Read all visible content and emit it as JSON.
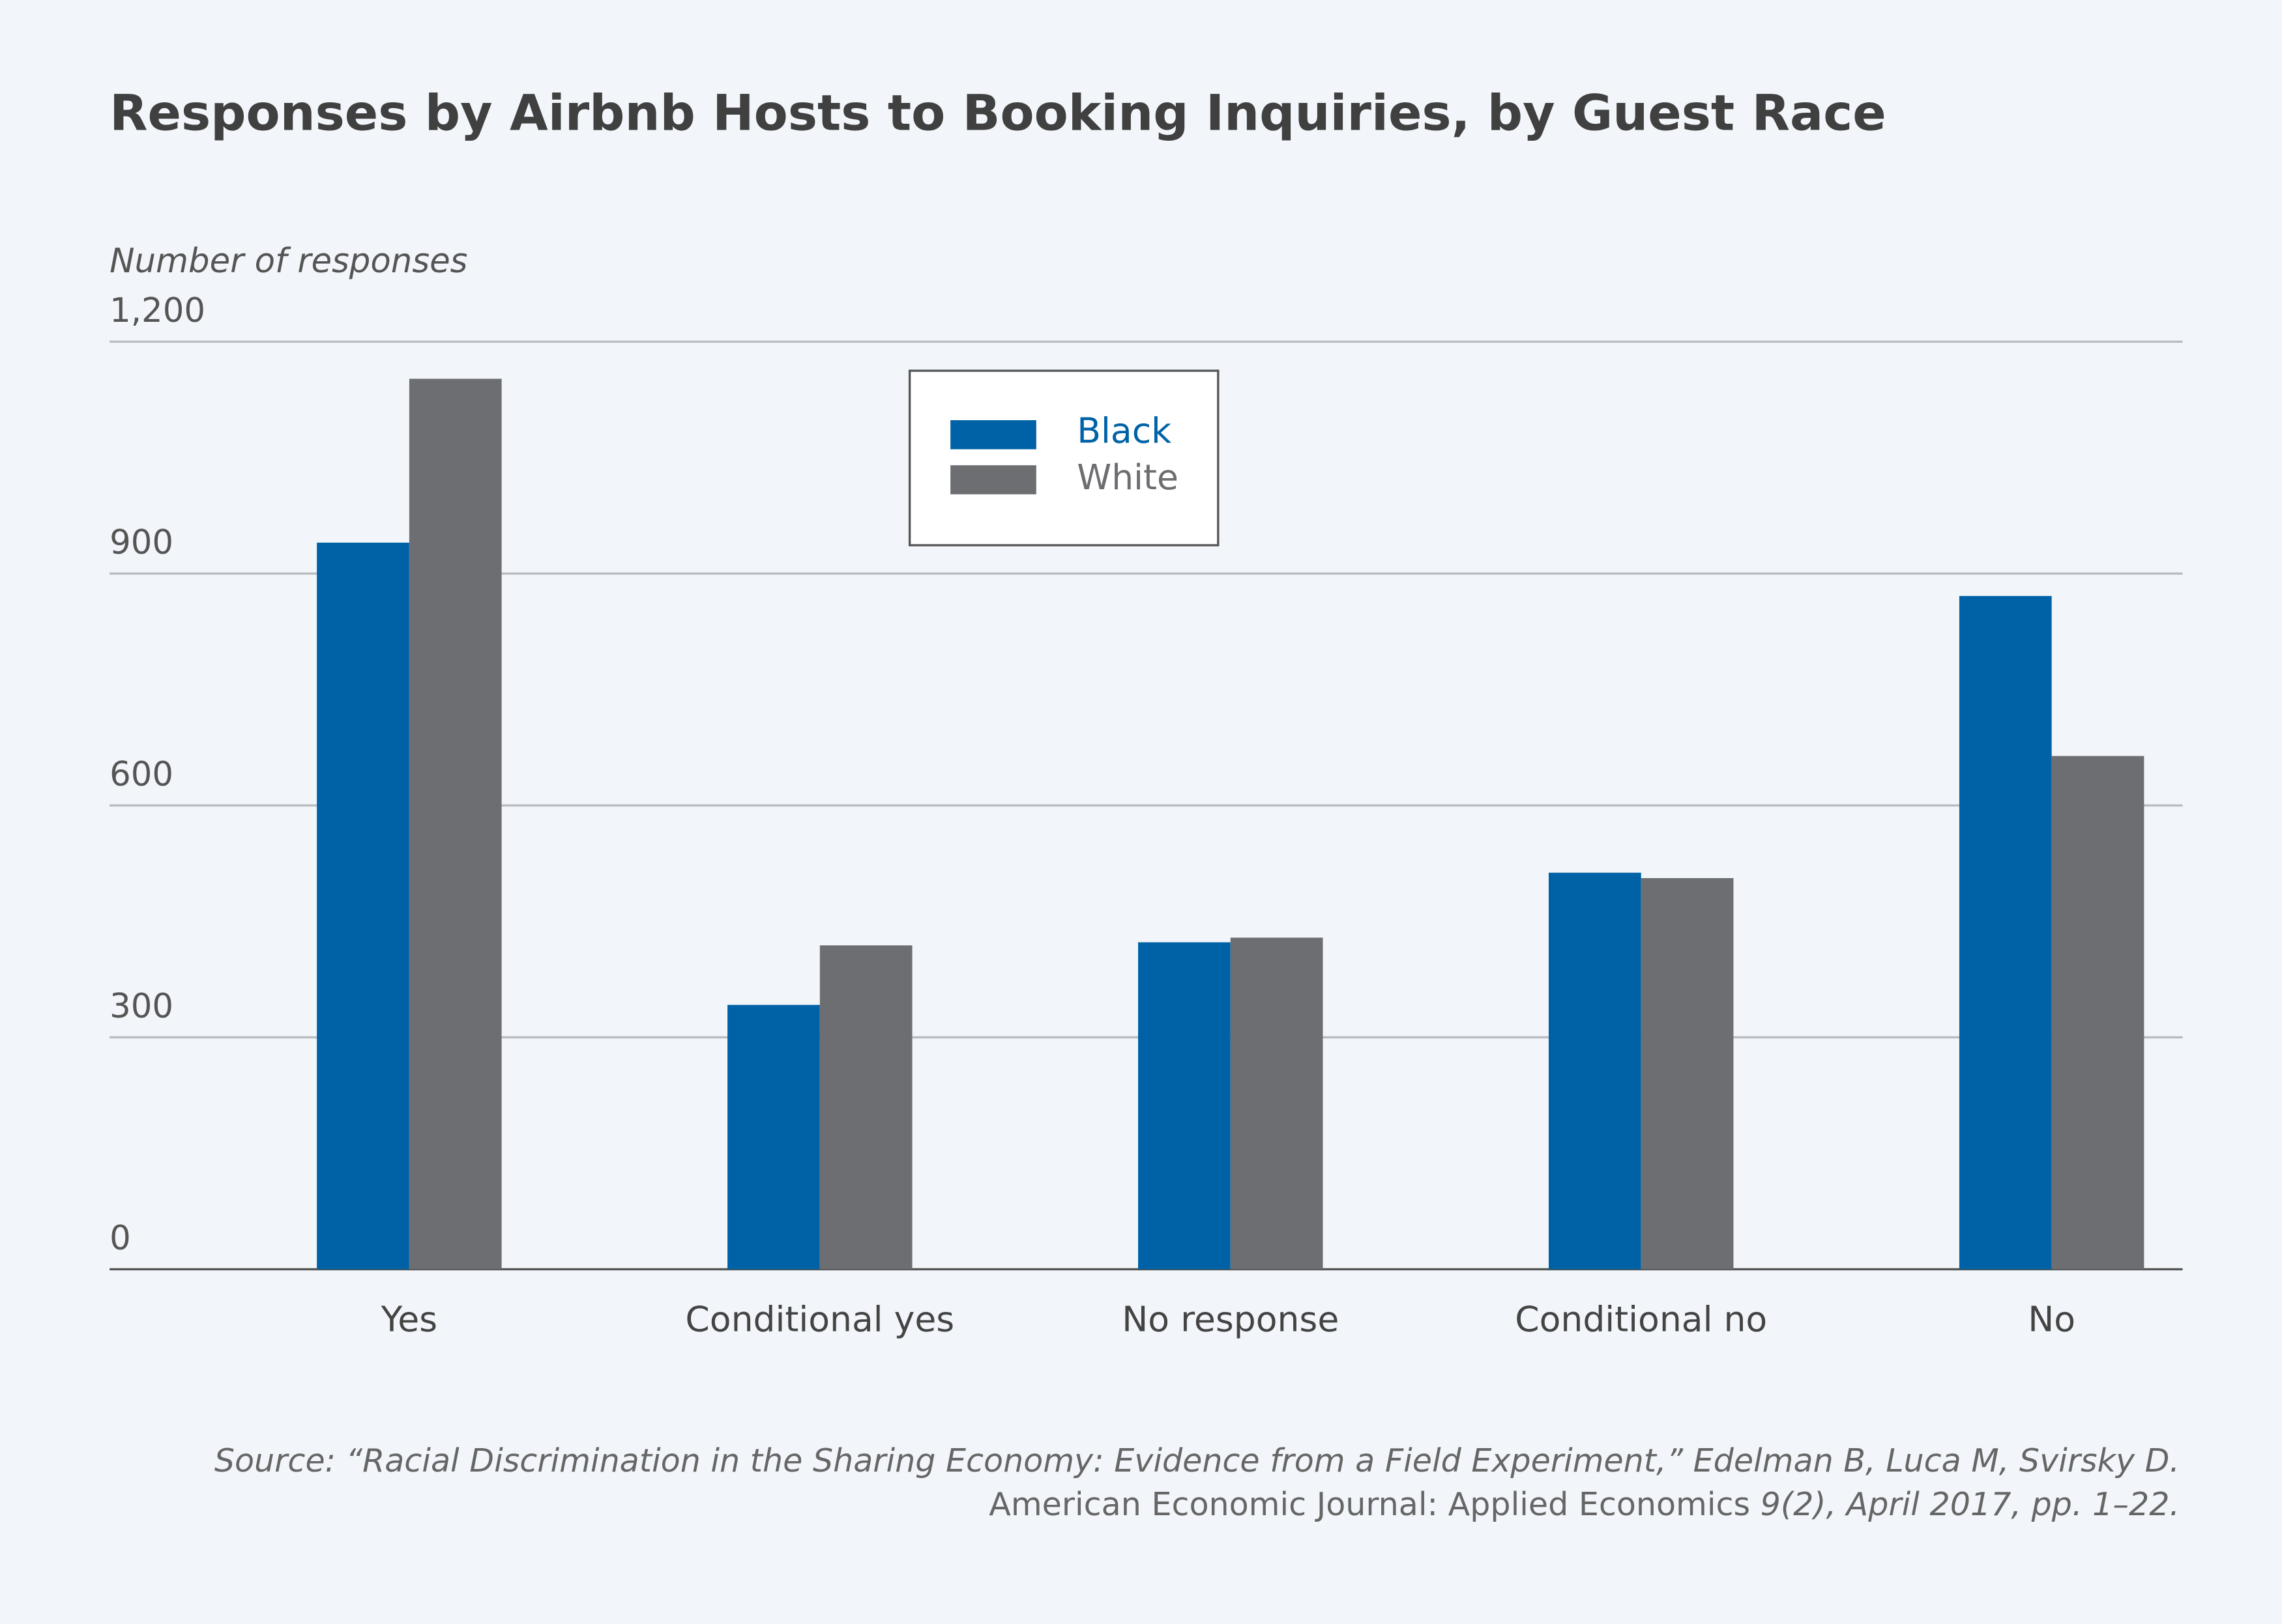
{
  "chart_data": {
    "type": "bar",
    "title": "Responses by Airbnb Hosts to Booking Inquiries, by Guest Race",
    "y_axis_label": "Number of responses",
    "categories": [
      "Yes",
      "Conditional yes",
      "No response",
      "Conditional no",
      "No"
    ],
    "series": [
      {
        "name": "Black",
        "color": "#0062a6",
        "values": [
          940,
          342,
          423,
          513,
          871
        ]
      },
      {
        "name": "White",
        "color": "#6d6e71",
        "values": [
          1152,
          419,
          429,
          506,
          664
        ]
      }
    ],
    "ylim": [
      0,
      1200
    ],
    "yticks": [
      0,
      300,
      600,
      900,
      {
        "value": 1200,
        "label": "1,200"
      }
    ],
    "grid": true,
    "legend": "top-center",
    "source": [
      "Source: “Racial Discrimination in the Sharing Economy: Evidence from a Field Experiment,” Edelman B, Luca M, Svirsky D.",
      "American Economic Journal: Applied Economics",
      "9(2), April 2017, pp. 1–22."
    ]
  }
}
